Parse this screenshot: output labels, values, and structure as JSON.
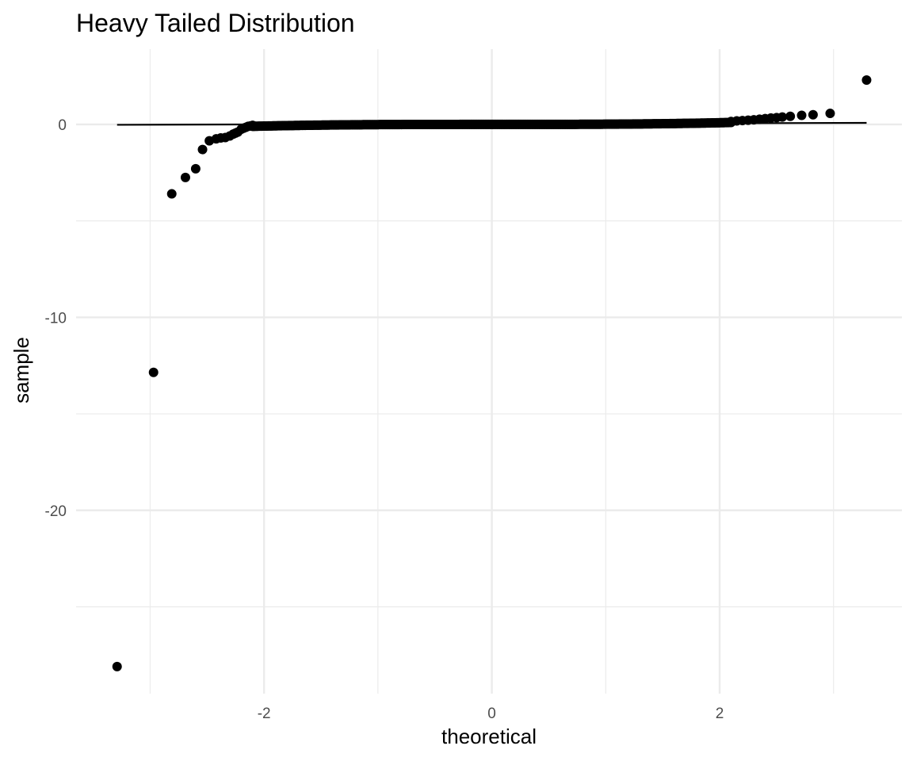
{
  "chart_data": {
    "type": "scatter",
    "title": "Heavy Tailed Distribution",
    "xlabel": "theoretical",
    "ylabel": "sample",
    "xlim": [
      -3.65,
      3.6
    ],
    "ylim": [
      -29.5,
      3.9
    ],
    "x_ticks": [
      -2,
      0,
      2
    ],
    "y_ticks": [
      0,
      -10,
      -20
    ],
    "x_minor_ticks": [
      -3,
      -1,
      1,
      3
    ],
    "y_minor_ticks": [
      -5,
      -15,
      -25
    ],
    "grid": true,
    "point_color": "#000000",
    "reference_line": {
      "x": [
        -3.29,
        3.29
      ],
      "y": [
        -0.02,
        0.08
      ]
    },
    "points": {
      "x": [
        -3.29,
        -2.97,
        -2.81,
        -2.69,
        -2.6,
        -2.54,
        -2.48,
        -2.42,
        -2.38,
        -2.34,
        -2.3,
        -2.27,
        -2.25,
        -2.23,
        -2.2,
        -2.18,
        -2.16,
        -2.14,
        -2.12,
        -2.1,
        2.1,
        2.15,
        2.2,
        2.25,
        2.3,
        2.35,
        2.4,
        2.45,
        2.5,
        2.55,
        2.62,
        2.72,
        2.82,
        2.97,
        3.29
      ],
      "y": [
        -28.1,
        -12.85,
        -3.6,
        -2.75,
        -2.3,
        -1.3,
        -0.85,
        -0.75,
        -0.7,
        -0.68,
        -0.6,
        -0.5,
        -0.45,
        -0.4,
        -0.25,
        -0.2,
        -0.15,
        -0.1,
        -0.08,
        -0.05,
        0.15,
        0.18,
        0.2,
        0.22,
        0.24,
        0.27,
        0.3,
        0.33,
        0.35,
        0.38,
        0.42,
        0.47,
        0.5,
        0.57,
        2.3
      ],
      "dense_band": {
        "x_range": [
          -2.1,
          2.1
        ],
        "y": 0.0,
        "count": 400
      }
    }
  }
}
